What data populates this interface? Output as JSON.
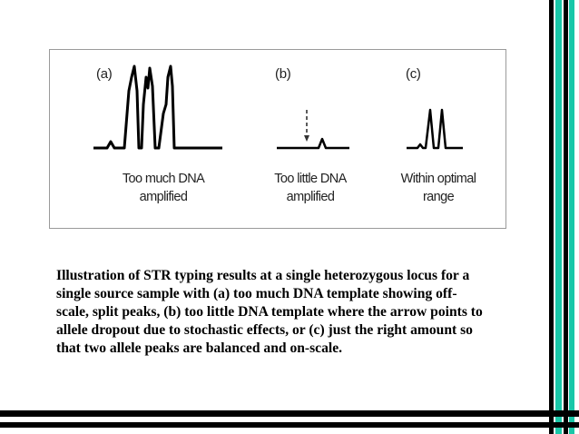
{
  "figure": {
    "panels": [
      {
        "label": "(a)",
        "caption_lines": [
          "Too much DNA",
          "amplified"
        ]
      },
      {
        "label": "(b)",
        "caption_lines": [
          "Too little DNA",
          "amplified"
        ]
      },
      {
        "label": "(c)",
        "caption_lines": [
          "Within optimal",
          "range"
        ]
      }
    ]
  },
  "caption": {
    "lines": [
      "Illustration of STR typing results at a single heterozygous locus for a",
      "single source sample with (a) too much DNA template showing off-",
      "scale, split peaks, (b) too little DNA template where the arrow points to",
      "allele dropout due to stochastic effects, or (c) just the right amount so",
      "that two allele peaks are balanced and on-scale."
    ]
  },
  "colors": {
    "accent_teal": "#19c7a8",
    "stripe_black": "#000000"
  }
}
